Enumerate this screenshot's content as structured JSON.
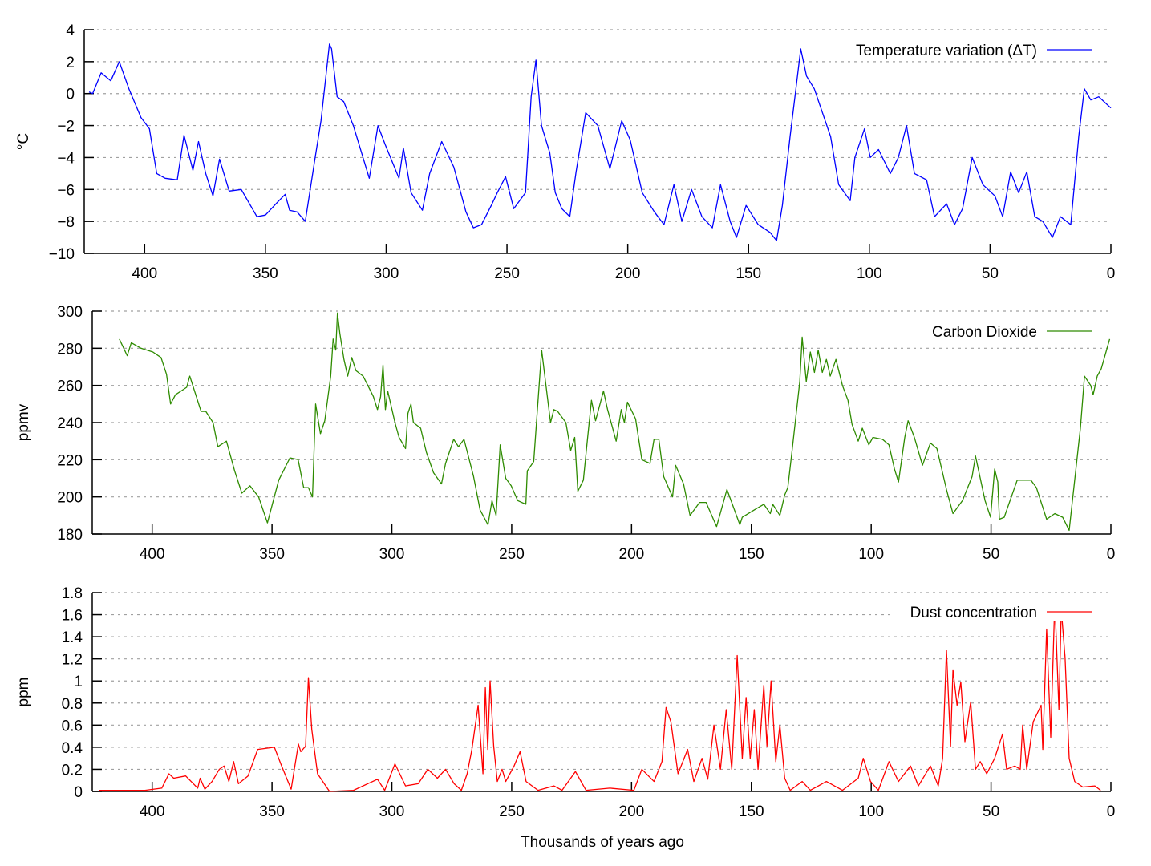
{
  "chart_data": [
    {
      "type": "line",
      "ylabel": "°C",
      "ylim": [
        -10,
        4
      ],
      "xlim": [
        425,
        0
      ],
      "x_reversed": true,
      "grid": true,
      "legend_position": "top-right",
      "yticks": [
        "−10",
        "−8",
        "−6",
        "−4",
        "−2",
        "0",
        "2",
        "4"
      ],
      "ytick_values": [
        -10,
        -8,
        -6,
        -4,
        -2,
        0,
        2,
        4
      ],
      "xticks": [
        "400",
        "350",
        "300",
        "250",
        "200",
        "150",
        "100",
        "50",
        "0"
      ],
      "xtick_values": [
        400,
        350,
        300,
        250,
        200,
        150,
        100,
        50,
        0
      ],
      "series": [
        {
          "name": "Temperature variation (ΔT)",
          "color": "#0000ff",
          "x": [
            423,
            421.5,
            418,
            414,
            410.5,
            406.5,
            401.5,
            398,
            395,
            391.5,
            386.5,
            383.7,
            380,
            377.7,
            374.7,
            371.7,
            369,
            365,
            360,
            353.5,
            350,
            345,
            341.8,
            340,
            336.9,
            333.5,
            329.6,
            327,
            323.5,
            322.6,
            320.3,
            317.6,
            313.6,
            307,
            303.4,
            300.4,
            294.7,
            292.9,
            289.7,
            285,
            282,
            277,
            272,
            267,
            263.9,
            260.5,
            256.5,
            254,
            250.6,
            247.2,
            242.3,
            240,
            238,
            235.7,
            232.3,
            230,
            227.3,
            224,
            221.4,
            217.4,
            212.4,
            207.4,
            202.5,
            199,
            194,
            189,
            185,
            180.9,
            177.6,
            173.6,
            169.3,
            165,
            161.6,
            157.6,
            155,
            151,
            146,
            141,
            138.4,
            136,
            132.8,
            130.4,
            128.4,
            126,
            122.8,
            119.4,
            116,
            112.7,
            107.9,
            106,
            102,
            99.6,
            96.2,
            91.3,
            88,
            84.6,
            81.3,
            76.3,
            73,
            68,
            64.7,
            61.4,
            57.4,
            53,
            48,
            44.8,
            41.5,
            38.2,
            34.8,
            31.5,
            28.2,
            24.2,
            20.9,
            16.6,
            13.3,
            11,
            8.3,
            5,
            0
          ],
          "y": [
            0.1,
            0,
            1.3,
            0.8,
            2.0,
            0.3,
            -1.5,
            -2.2,
            -5,
            -5.3,
            -5.4,
            -2.6,
            -4.8,
            -3.0,
            -5.0,
            -6.4,
            -4.1,
            -6.1,
            -6,
            -7.7,
            -7.6,
            -6.8,
            -6.3,
            -7.3,
            -7.4,
            -8,
            -4.2,
            -1.7,
            3.1,
            2.8,
            -0.2,
            -0.5,
            -2,
            -5.3,
            -2,
            -3.2,
            -5.3,
            -3.4,
            -6.2,
            -7.3,
            -5,
            -3,
            -4.6,
            -7.4,
            -8.4,
            -8.2,
            -7,
            -6.2,
            -5.2,
            -7.2,
            -6.2,
            -0.2,
            2.1,
            -2,
            -3.7,
            -6.2,
            -7.2,
            -7.7,
            -4.9,
            -1.2,
            -2,
            -4.7,
            -1.7,
            -2.9,
            -6.2,
            -7.4,
            -8.2,
            -5.7,
            -8,
            -6,
            -7.7,
            -8.4,
            -5.7,
            -8,
            -9,
            -7,
            -8.2,
            -8.7,
            -9.2,
            -7,
            -2.7,
            0.3,
            2.8,
            1.1,
            0.3,
            -1.2,
            -2.7,
            -5.7,
            -6.7,
            -4,
            -2.2,
            -4,
            -3.5,
            -5,
            -4,
            -2,
            -5,
            -5.4,
            -7.7,
            -6.9,
            -8.2,
            -7.2,
            -4,
            -5.7,
            -6.4,
            -7.7,
            -4.9,
            -6.2,
            -4.9,
            -7.7,
            -8,
            -9,
            -7.7,
            -8.2,
            -2.7,
            0.3,
            -0.4,
            -0.2,
            -0.9
          ]
        }
      ]
    },
    {
      "type": "line",
      "ylabel": "ppmv",
      "ylim": [
        180,
        300
      ],
      "xlim": [
        425,
        0
      ],
      "x_reversed": true,
      "grid": true,
      "legend_position": "top-right",
      "yticks": [
        "180",
        "200",
        "220",
        "240",
        "260",
        "280",
        "300"
      ],
      "ytick_values": [
        180,
        200,
        220,
        240,
        260,
        280,
        300
      ],
      "xticks": [
        "400",
        "350",
        "300",
        "250",
        "200",
        "150",
        "100",
        "50",
        "0"
      ],
      "xtick_values": [
        400,
        350,
        300,
        250,
        200,
        150,
        100,
        50,
        0
      ],
      "series": [
        {
          "name": "Carbon Dioxide",
          "color": "#2e8b00",
          "x": [
            413.7,
            410.4,
            408.7,
            404.7,
            399.7,
            396.3,
            394,
            392.3,
            390.3,
            385.6,
            384.3,
            379.6,
            377.6,
            374.6,
            372.6,
            369,
            365.6,
            362.6,
            359.2,
            355.6,
            351.9,
            347.2,
            342.5,
            339.1,
            336.8,
            334.8,
            333.1,
            331.8,
            329.8,
            328,
            325.5,
            324.5,
            323.4,
            322.7,
            321.7,
            320,
            318.4,
            316.7,
            315,
            312,
            310,
            307.7,
            306,
            304.7,
            303.7,
            302.7,
            301.7,
            298.7,
            297,
            294.3,
            293.3,
            292,
            291,
            288,
            285.6,
            282.6,
            279.3,
            277.6,
            274.2,
            272.2,
            269.9,
            265.9,
            263.2,
            259.9,
            258.2,
            256.5,
            254.8,
            252.5,
            250.2,
            247.5,
            244.1,
            243.5,
            240.8,
            239.1,
            237.5,
            235.8,
            233.8,
            232.4,
            230.8,
            227.4,
            225.4,
            223.7,
            222.4,
            220.1,
            218.4,
            216.7,
            215,
            211.7,
            210,
            206.4,
            204.3,
            203,
            201.7,
            198.3,
            195.7,
            192.3,
            190.6,
            188.6,
            186.6,
            182.9,
            181.6,
            178.3,
            175.6,
            171.6,
            168.9,
            164.5,
            160.2,
            154.8,
            153.8,
            148.8,
            144.8,
            142.1,
            141.1,
            138.1,
            136.1,
            134.8,
            133.1,
            129.8,
            128.8,
            127.1,
            125.4,
            123.7,
            122.1,
            120.4,
            118.7,
            117.1,
            114.7,
            112,
            109.7,
            108,
            105.4,
            103.7,
            101,
            99.3,
            95.3,
            92.6,
            90.3,
            88.6,
            86,
            84.6,
            82,
            78.6,
            75.3,
            72.6,
            68.6,
            65.9,
            61.9,
            57.9,
            56.5,
            52.5,
            50.2,
            48.5,
            47.2,
            46.5,
            44.5,
            39.1,
            33.4,
            31.1,
            26.8,
            23.4,
            20.1,
            17.4,
            12.7,
            11,
            8.4,
            7.4,
            5.7,
            4,
            0.5
          ],
          "y": [
            285,
            276,
            283,
            280,
            278,
            275,
            266,
            250,
            255,
            259,
            265,
            246,
            246,
            240,
            227,
            230,
            214,
            202,
            206,
            200,
            186,
            209,
            221,
            220,
            205,
            205,
            200,
            250,
            234,
            241,
            265,
            285,
            279,
            299,
            288,
            274,
            265,
            275,
            268,
            265,
            260,
            254,
            247,
            254,
            271,
            247,
            257,
            240,
            232,
            226,
            245,
            250,
            240,
            237,
            224,
            213,
            207,
            218,
            231,
            227,
            231,
            211,
            193,
            185,
            198,
            190,
            228,
            210,
            206,
            198,
            196,
            214,
            219,
            250,
            279,
            261,
            240,
            247,
            246,
            240,
            225,
            232,
            203,
            209,
            231,
            252,
            241,
            257,
            247,
            230,
            247,
            240,
            251,
            242,
            220,
            218,
            231,
            231,
            211,
            200,
            217,
            207,
            190,
            197,
            197,
            184,
            204,
            185,
            189,
            193,
            196,
            191,
            196,
            190,
            201,
            205,
            224,
            262,
            286,
            262,
            278,
            267,
            279,
            267,
            274,
            265,
            274,
            260,
            252,
            239,
            230,
            237,
            228,
            232,
            231,
            228,
            215,
            208,
            232,
            241,
            232,
            217,
            229,
            226,
            204,
            191,
            198,
            211,
            222,
            198,
            189,
            215,
            208,
            188,
            189,
            209,
            209,
            205,
            188,
            191,
            189,
            182,
            237,
            265,
            260,
            255,
            265,
            269,
            285
          ]
        }
      ]
    },
    {
      "type": "line",
      "ylabel": "ppm",
      "xlabel": "Thousands of years ago",
      "ylim": [
        0,
        1.8
      ],
      "xlim": [
        425,
        0
      ],
      "x_reversed": true,
      "grid": true,
      "legend_position": "top-right",
      "yticks": [
        "0",
        "0.2",
        "0.4",
        "0.6",
        "0.8",
        "1",
        "1.2",
        "1.4",
        "1.6",
        "1.8"
      ],
      "ytick_values": [
        0,
        0.2,
        0.4,
        0.6,
        0.8,
        1,
        1.2,
        1.4,
        1.6,
        1.8
      ],
      "xticks": [
        "400",
        "350",
        "300",
        "250",
        "200",
        "150",
        "100",
        "50",
        "0"
      ],
      "xtick_values": [
        400,
        350,
        300,
        250,
        200,
        150,
        100,
        50,
        0
      ],
      "series": [
        {
          "name": "Dust concentration",
          "color": "#ff0000",
          "x": [
            422,
            403,
            396,
            393,
            391,
            386,
            381,
            380,
            378,
            375,
            372,
            370,
            368,
            366,
            364,
            360,
            356,
            349,
            346,
            342,
            339,
            338,
            336,
            334.8,
            333.4,
            331,
            326,
            316,
            306,
            303,
            298.7,
            294.3,
            289,
            285,
            281,
            277.6,
            274,
            271,
            268.6,
            266.6,
            264,
            262,
            261,
            260,
            259,
            257.5,
            256,
            254,
            252.5,
            249,
            246.5,
            244,
            239,
            232.4,
            229,
            223.4,
            219,
            209,
            199,
            195.7,
            190.6,
            187.3,
            185.6,
            183.6,
            180.6,
            176.6,
            174,
            170.6,
            168.2,
            165.6,
            162.9,
            160.5,
            158.2,
            155.9,
            153.8,
            152.2,
            150.5,
            148.8,
            147.2,
            144.8,
            143.5,
            141.8,
            139.8,
            138.1,
            136.1,
            133.8,
            128.8,
            125.4,
            118.7,
            112,
            105.4,
            103.3,
            100.3,
            97,
            92.6,
            88.6,
            83.6,
            80.3,
            75.3,
            72,
            70.2,
            68.6,
            66.9,
            65.9,
            64.2,
            62.6,
            60.9,
            58.5,
            56.5,
            54.5,
            51.8,
            48.5,
            45.2,
            43.5,
            40.1,
            37.8,
            36.8,
            35.1,
            32.4,
            29.1,
            28.4,
            26.8,
            25.1,
            23.4,
            21.7,
            20.7,
            19.1,
            17.4,
            15.1,
            11.7,
            6.7,
            4.3
          ],
          "y": [
            0.01,
            0.01,
            0.03,
            0.16,
            0.12,
            0.14,
            0.03,
            0.12,
            0.02,
            0.09,
            0.2,
            0.23,
            0.09,
            0.27,
            0.07,
            0.14,
            0.38,
            0.4,
            0.23,
            0.02,
            0.43,
            0.36,
            0.41,
            1.03,
            0.56,
            0.16,
            0,
            0.01,
            0.11,
            0.01,
            0.25,
            0.05,
            0.07,
            0.2,
            0.12,
            0.2,
            0.07,
            0.01,
            0.16,
            0.38,
            0.78,
            0.16,
            0.94,
            0.38,
            1.0,
            0.41,
            0.09,
            0.2,
            0.09,
            0.23,
            0.36,
            0.09,
            0.01,
            0.05,
            0.01,
            0.18,
            0.01,
            0.03,
            0.01,
            0.2,
            0.09,
            0.27,
            0.76,
            0.63,
            0.16,
            0.38,
            0.09,
            0.3,
            0.11,
            0.6,
            0.2,
            0.74,
            0.2,
            1.23,
            0.3,
            0.85,
            0.3,
            0.74,
            0.2,
            0.96,
            0.41,
            1.0,
            0.27,
            0.6,
            0.12,
            0.01,
            0.09,
            0.01,
            0.09,
            0.01,
            0.12,
            0.3,
            0.09,
            0.01,
            0.27,
            0.09,
            0.23,
            0.05,
            0.23,
            0.05,
            0.3,
            1.28,
            0.41,
            1.1,
            0.78,
            0.99,
            0.45,
            0.81,
            0.2,
            0.27,
            0.16,
            0.3,
            0.52,
            0.2,
            0.23,
            0.2,
            0.6,
            0.2,
            0.63,
            0.78,
            0.38,
            1.47,
            0.49,
            1.73,
            0.74,
            1.65,
            1.21,
            0.3,
            0.09,
            0.04,
            0.05,
            0.01
          ]
        }
      ]
    }
  ]
}
